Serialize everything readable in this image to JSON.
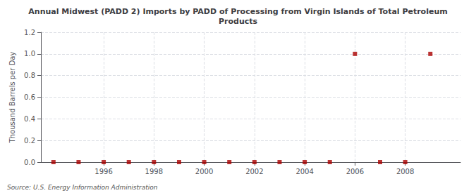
{
  "chart_data": {
    "type": "scatter",
    "title": "Annual Midwest (PADD 2) Imports by PADD of Processing from Virgin Islands of Total Petroleum\nProducts",
    "ylabel": "Thousand Barrels per Day",
    "annotation": "Source: U.S. Energy Information Administration",
    "x": [
      1994,
      1995,
      1996,
      1997,
      1998,
      1999,
      2000,
      2001,
      2002,
      2003,
      2004,
      2005,
      2006,
      2007,
      2008,
      2009
    ],
    "values": [
      0.0,
      0.0,
      0.0,
      0.0,
      0.0,
      0.0,
      0.0,
      0.0,
      0.0,
      0.0,
      0.0,
      0.0,
      1.0,
      0.0,
      0.0,
      1.0
    ],
    "color": "#aa0000",
    "marker": "square",
    "xlim": [
      1993.5,
      2010.2
    ],
    "ylim": [
      0.0,
      1.2
    ],
    "xticks": [
      1996,
      1998,
      2000,
      2002,
      2004,
      2006,
      2008
    ],
    "yticks": [
      {
        "value": 0.0,
        "label": "0.0"
      },
      0.2,
      0.4,
      0.6,
      0.8,
      {
        "value": 1.0,
        "label": "1.0"
      },
      1.2
    ],
    "grid": true
  }
}
